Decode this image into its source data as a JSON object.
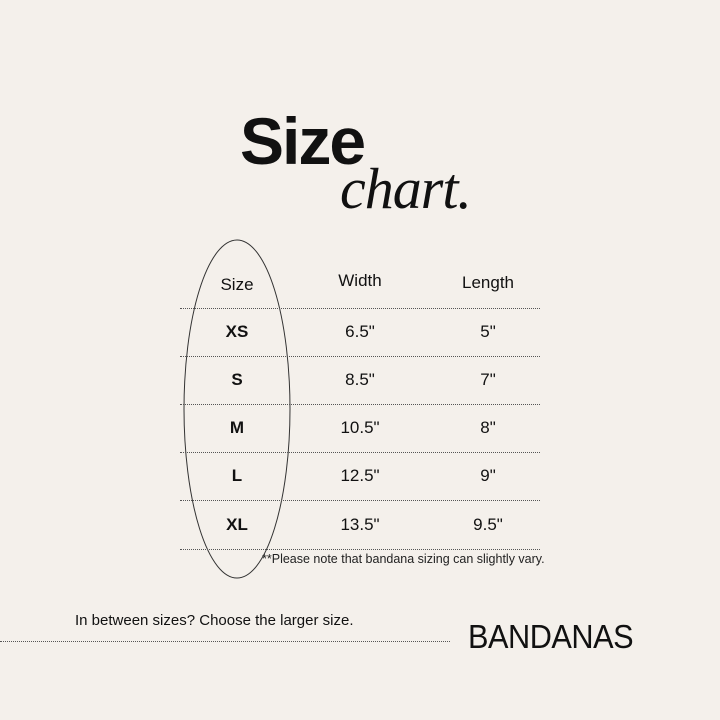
{
  "title": {
    "main": "Size",
    "script": "chart."
  },
  "table": {
    "headers": [
      "Size",
      "Width",
      "Length"
    ],
    "rows": [
      {
        "size": "XS",
        "width": "6.5\"",
        "length": "5\""
      },
      {
        "size": "S",
        "width": "8.5\"",
        "length": "7\""
      },
      {
        "size": "M",
        "width": "10.5\"",
        "length": "8\""
      },
      {
        "size": "L",
        "width": "12.5\"",
        "length": "9\""
      },
      {
        "size": "XL",
        "width": "13.5\"",
        "length": "9.5\""
      }
    ]
  },
  "note": "**Please note that bandana sizing can slightly vary.",
  "tip": "In between sizes? Choose the larger size.",
  "brand": "BANDANAS",
  "colors": {
    "background": "#f4f0eb",
    "text": "#111111"
  }
}
